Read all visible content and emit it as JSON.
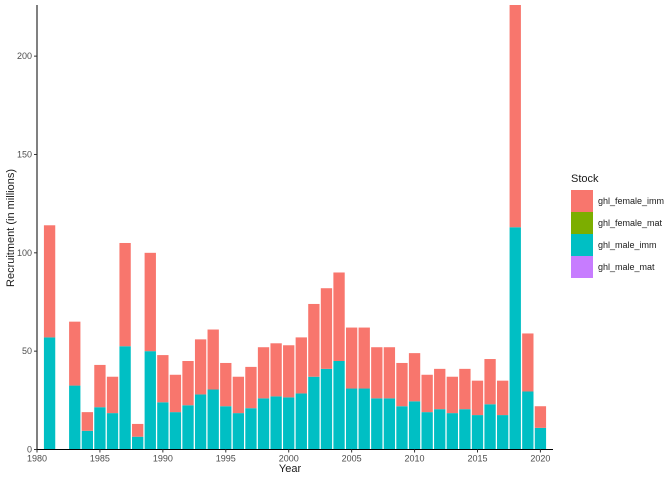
{
  "chart_data": {
    "type": "bar",
    "stacked": true,
    "xlabel": "Year",
    "ylabel": "Recruitment (in millions)",
    "xlim": [
      1980,
      2021
    ],
    "ylim": [
      0,
      226
    ],
    "x_ticks": [
      1980,
      1985,
      1990,
      1995,
      2000,
      2005,
      2010,
      2015,
      2020
    ],
    "y_ticks": [
      0,
      50,
      100,
      150,
      200
    ],
    "grid": false,
    "legend_title": "Stock",
    "legend_position": "right",
    "x": [
      1981,
      1982,
      1983,
      1984,
      1985,
      1986,
      1987,
      1988,
      1989,
      1990,
      1991,
      1992,
      1993,
      1994,
      1995,
      1996,
      1997,
      1998,
      1999,
      2000,
      2001,
      2002,
      2003,
      2004,
      2005,
      2006,
      2007,
      2008,
      2009,
      2010,
      2011,
      2012,
      2013,
      2014,
      2015,
      2016,
      2017,
      2018,
      2019,
      2020
    ],
    "series": [
      {
        "name": "ghl_female_imm",
        "color": "#F8766D",
        "values": [
          57,
          0,
          32.5,
          9.5,
          21.5,
          18.5,
          52.5,
          6.5,
          50,
          24,
          19,
          22.5,
          28,
          30.5,
          22,
          18.5,
          21,
          26,
          27,
          26.5,
          28.5,
          37,
          41,
          45,
          31,
          31,
          26,
          26,
          22,
          24.5,
          19,
          20.5,
          18.5,
          20.5,
          17.5,
          23,
          17.5,
          113,
          29.5,
          11
        ]
      },
      {
        "name": "ghl_female_mat",
        "color": "#7CAE00",
        "values": [
          0,
          0,
          0,
          0,
          0,
          0,
          0,
          0,
          0,
          0,
          0,
          0,
          0,
          0,
          0,
          0,
          0,
          0,
          0,
          0,
          0,
          0,
          0,
          0,
          0,
          0,
          0,
          0,
          0,
          0,
          0,
          0,
          0,
          0,
          0,
          0,
          0,
          0,
          0,
          0
        ]
      },
      {
        "name": "ghl_male_imm",
        "color": "#00BFC4",
        "values": [
          57,
          0,
          32.5,
          9.5,
          21.5,
          18.5,
          52.5,
          6.5,
          50,
          24,
          19,
          22.5,
          28,
          30.5,
          22,
          18.5,
          21,
          26,
          27,
          26.5,
          28.5,
          37,
          41,
          45,
          31,
          31,
          26,
          26,
          22,
          24.5,
          19,
          20.5,
          18.5,
          20.5,
          17.5,
          23,
          17.5,
          113,
          29.5,
          11
        ]
      },
      {
        "name": "ghl_male_mat",
        "color": "#C77CFF",
        "values": [
          0,
          0,
          0,
          0,
          0,
          0,
          0,
          0,
          0,
          0,
          0,
          0,
          0,
          0,
          0,
          0,
          0,
          0,
          0,
          0,
          0,
          0,
          0,
          0,
          0,
          0,
          0,
          0,
          0,
          0,
          0,
          0,
          0,
          0,
          0,
          0,
          0,
          0,
          0,
          0
        ]
      }
    ],
    "stack_order_bottom_to_top": [
      "ghl_male_imm",
      "ghl_female_imm"
    ]
  }
}
